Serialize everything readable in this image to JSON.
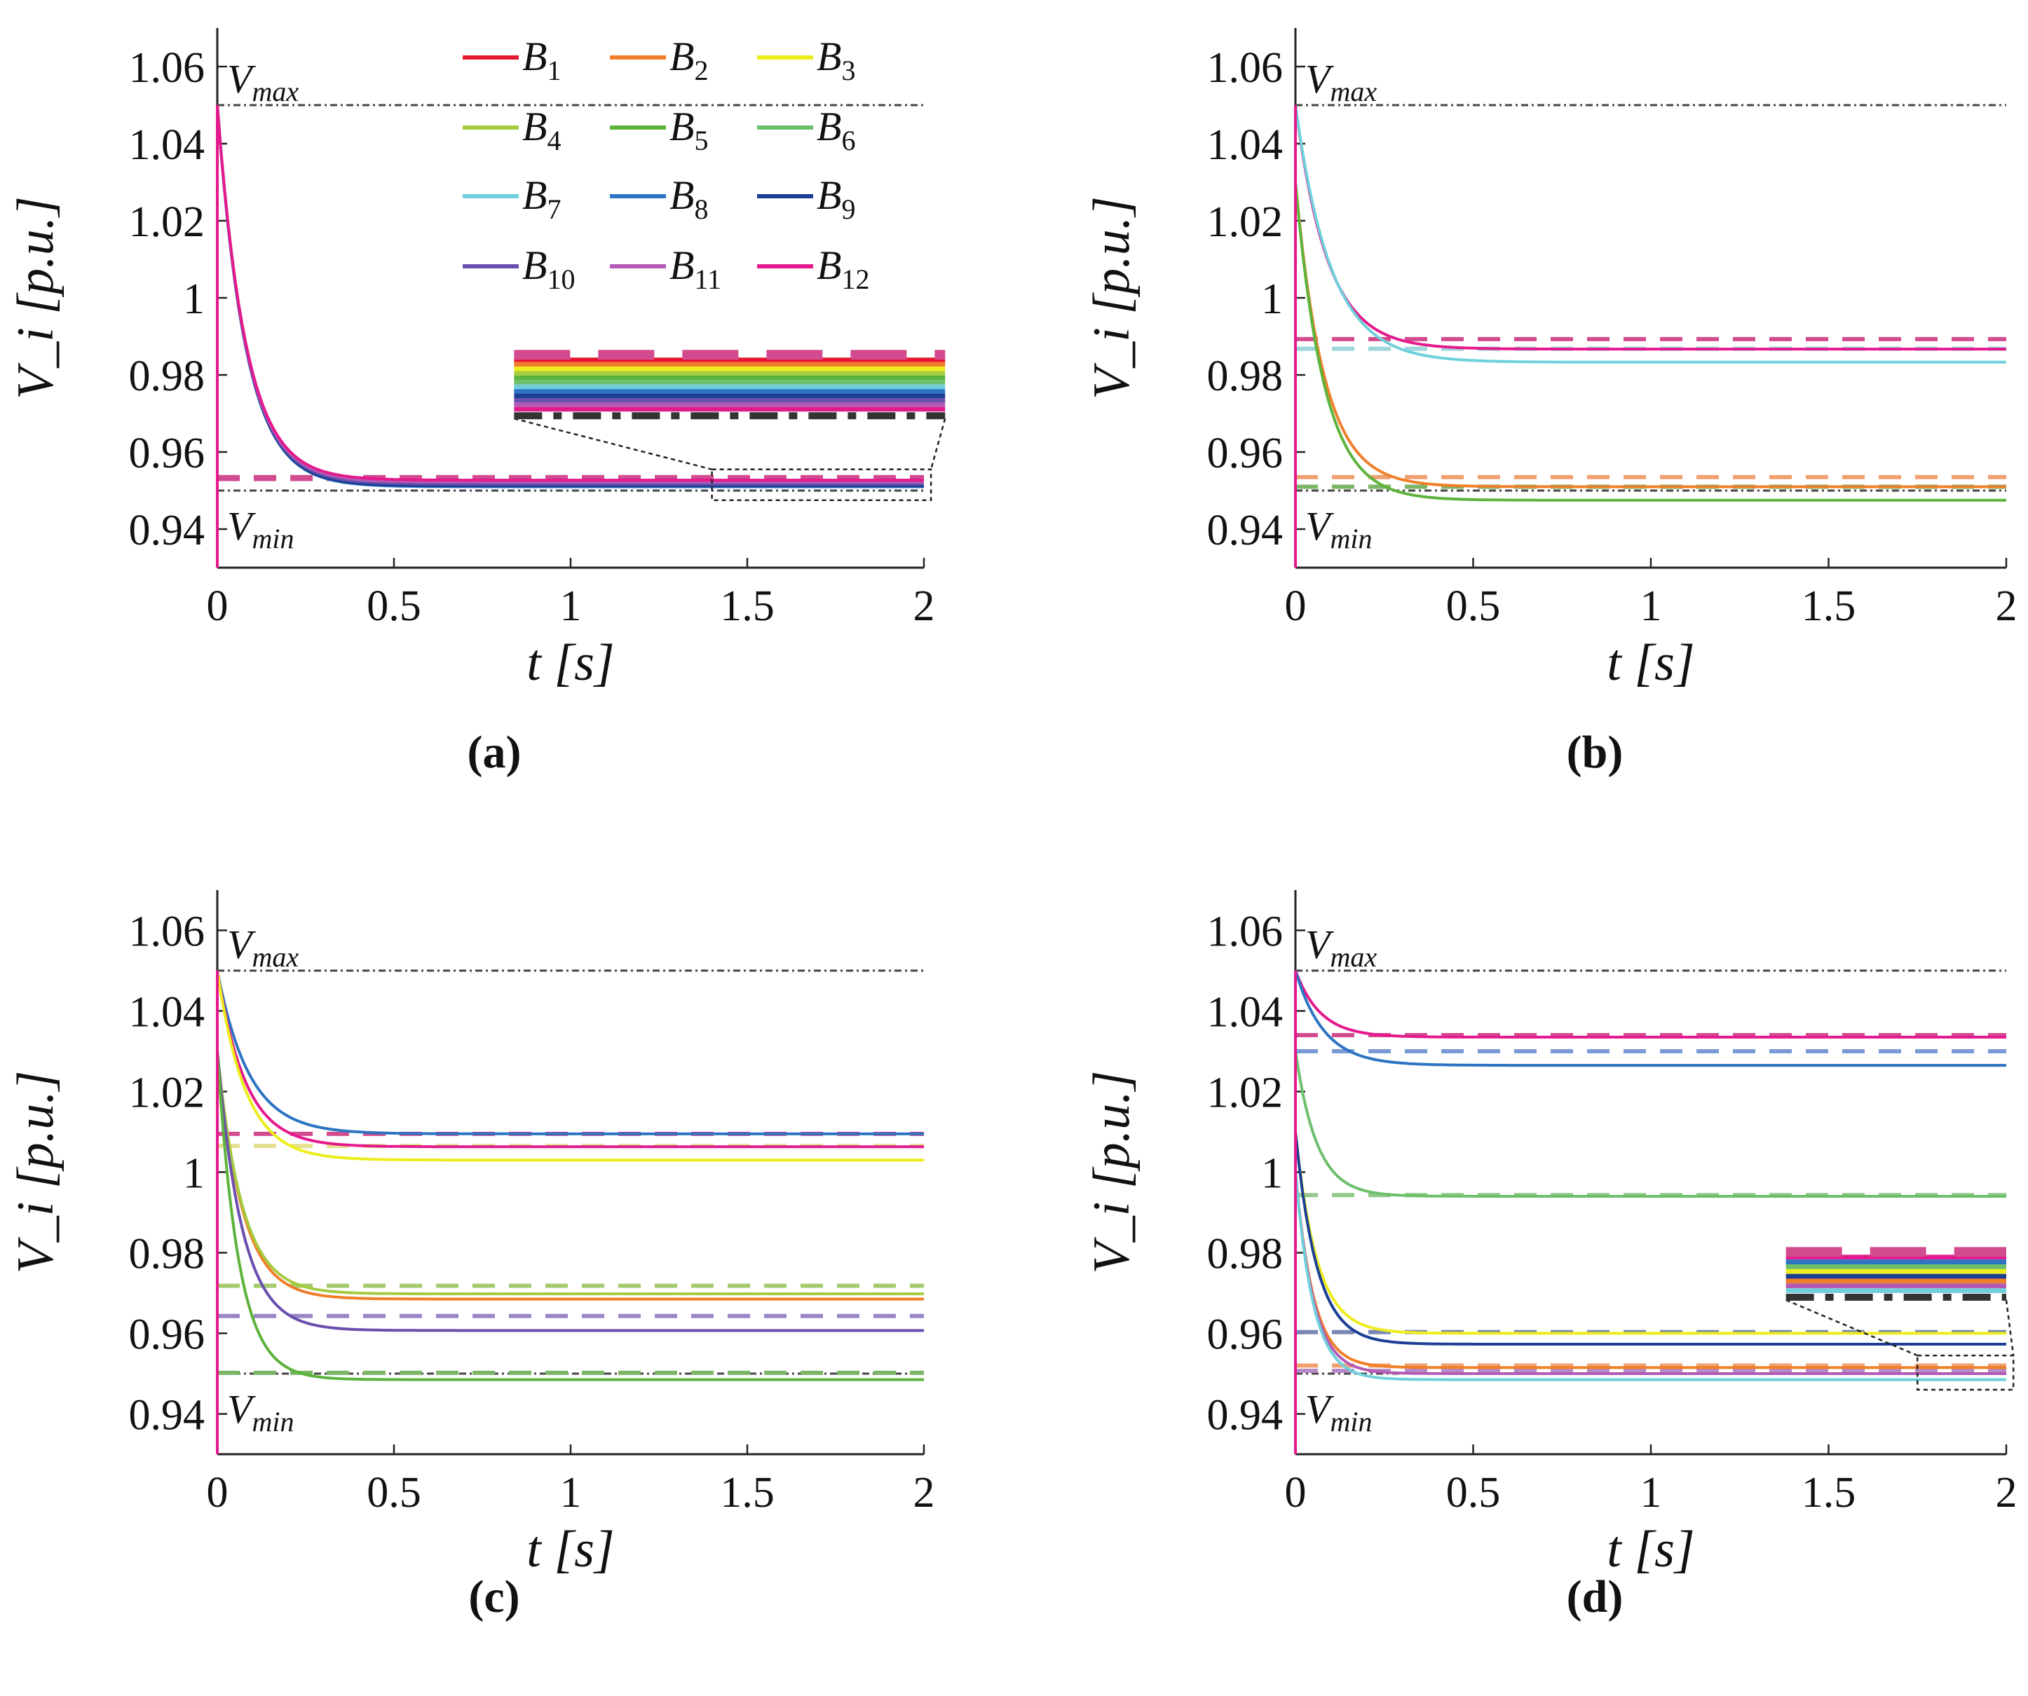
{
  "figure": {
    "legend": [
      {
        "name": "B",
        "sub": "1",
        "color": "#e8152f"
      },
      {
        "name": "B",
        "sub": "2",
        "color": "#f07f2a"
      },
      {
        "name": "B",
        "sub": "3",
        "color": "#eded1c"
      },
      {
        "name": "B",
        "sub": "4",
        "color": "#a5cb3f"
      },
      {
        "name": "B",
        "sub": "5",
        "color": "#5db33c"
      },
      {
        "name": "B",
        "sub": "6",
        "color": "#6cbf6b"
      },
      {
        "name": "B",
        "sub": "7",
        "color": "#6fd0dc"
      },
      {
        "name": "B",
        "sub": "8",
        "color": "#2d74c2"
      },
      {
        "name": "B",
        "sub": "9",
        "color": "#1b3f94"
      },
      {
        "name": "B",
        "sub": "10",
        "color": "#6a4fae"
      },
      {
        "name": "B",
        "sub": "11",
        "color": "#b45ab5"
      },
      {
        "name": "B",
        "sub": "12",
        "color": "#e5198e"
      }
    ],
    "v_max_label": {
      "main": "V",
      "sub": "max"
    },
    "v_min_label": {
      "main": "V",
      "sub": "min"
    },
    "ylabel": "V_i [p.u.]",
    "xlabel": "t [s]"
  },
  "chart_data": [
    {
      "type": "line",
      "caption": "(a)",
      "xlim": [
        0,
        2
      ],
      "ylim": [
        0.93,
        1.07
      ],
      "xticks": [
        "0",
        "0.5",
        "1",
        "1.5",
        "2"
      ],
      "yticks": [
        "0.94",
        "0.96",
        "0.98",
        "1",
        "1.02",
        "1.04",
        "1.06"
      ],
      "ytick_values": [
        0.94,
        0.96,
        0.98,
        1.0,
        1.02,
        1.04,
        1.06
      ],
      "xtick_values": [
        0,
        0.5,
        1,
        1.5,
        2
      ],
      "v_max": 1.05,
      "v_min": 0.95,
      "inset": true,
      "series": [
        {
          "bus": "B1",
          "color": "#e8152f",
          "start": 1.05,
          "final": 0.9525,
          "tau": 0.08
        },
        {
          "bus": "B2",
          "color": "#f07f2a",
          "start": 1.05,
          "final": 0.9522,
          "tau": 0.08
        },
        {
          "bus": "B3",
          "color": "#eded1c",
          "start": 1.05,
          "final": 0.952,
          "tau": 0.08
        },
        {
          "bus": "B4",
          "color": "#a5cb3f",
          "start": 1.05,
          "final": 0.9518,
          "tau": 0.08
        },
        {
          "bus": "B5",
          "color": "#5db33c",
          "start": 1.05,
          "final": 0.9516,
          "tau": 0.08
        },
        {
          "bus": "B6",
          "color": "#6cbf6b",
          "start": 1.05,
          "final": 0.9515,
          "tau": 0.08
        },
        {
          "bus": "B7",
          "color": "#6fd0dc",
          "start": 1.05,
          "final": 0.9512,
          "tau": 0.08
        },
        {
          "bus": "B8",
          "color": "#2d74c2",
          "start": 1.05,
          "final": 0.951,
          "tau": 0.08
        },
        {
          "bus": "B9",
          "color": "#1b3f94",
          "start": 1.05,
          "final": 0.9512,
          "tau": 0.08
        },
        {
          "bus": "B10",
          "color": "#6a4fae",
          "start": 1.05,
          "final": 0.9517,
          "tau": 0.08
        },
        {
          "bus": "B11",
          "color": "#b45ab5",
          "start": 1.05,
          "final": 0.9522,
          "tau": 0.08
        },
        {
          "bus": "B12",
          "color": "#e5198e",
          "start": 1.05,
          "final": 0.9527,
          "tau": 0.08
        }
      ],
      "references": [
        {
          "color": "#d24b8f",
          "value": 0.9535
        },
        {
          "color": "#d24b8f",
          "value": 0.953
        }
      ]
    },
    {
      "type": "line",
      "caption": "(b)",
      "xlim": [
        0,
        2
      ],
      "ylim": [
        0.93,
        1.07
      ],
      "xticks": [
        "0",
        "0.5",
        "1",
        "1.5",
        "2"
      ],
      "yticks": [
        "0.94",
        "0.96",
        "0.98",
        "1",
        "1.02",
        "1.04",
        "1.06"
      ],
      "ytick_values": [
        0.94,
        0.96,
        0.98,
        1.0,
        1.02,
        1.04,
        1.06
      ],
      "xtick_values": [
        0,
        0.5,
        1,
        1.5,
        2
      ],
      "v_max": 1.05,
      "v_min": 0.95,
      "inset": false,
      "series": [
        {
          "bus": "B12",
          "color": "#e5198e",
          "start": 1.05,
          "final": 0.9867,
          "tau": 0.09
        },
        {
          "bus": "B7",
          "color": "#6fd0dc",
          "start": 1.05,
          "final": 0.9833,
          "tau": 0.1
        },
        {
          "bus": "B2",
          "color": "#f07f2a",
          "start": 1.03,
          "final": 0.951,
          "tau": 0.08
        },
        {
          "bus": "B5",
          "color": "#5db33c",
          "start": 1.03,
          "final": 0.9475,
          "tau": 0.08
        }
      ],
      "references": [
        {
          "color": "#d24b8f",
          "value": 0.9893
        },
        {
          "color": "#9ed6dc",
          "value": 0.9868
        },
        {
          "color": "#f0a070",
          "value": 0.9535
        },
        {
          "color": "#7bb565",
          "value": 0.951
        }
      ]
    },
    {
      "type": "line",
      "caption": "(c)",
      "xlim": [
        0,
        2
      ],
      "ylim": [
        0.93,
        1.07
      ],
      "xticks": [
        "0",
        "0.5",
        "1",
        "1.5",
        "2"
      ],
      "yticks": [
        "0.94",
        "0.96",
        "0.98",
        "1",
        "1.02",
        "1.04",
        "1.06"
      ],
      "ytick_values": [
        0.94,
        0.96,
        0.98,
        1.0,
        1.02,
        1.04,
        1.06
      ],
      "xtick_values": [
        0,
        0.5,
        1,
        1.5,
        2
      ],
      "v_max": 1.05,
      "v_min": 0.95,
      "inset": false,
      "series": [
        {
          "bus": "B8",
          "color": "#2d74c2",
          "start": 1.05,
          "final": 1.0095,
          "tau": 0.09
        },
        {
          "bus": "B12",
          "color": "#e5198e",
          "start": 1.05,
          "final": 1.0063,
          "tau": 0.08
        },
        {
          "bus": "B3",
          "color": "#eded1c",
          "start": 1.05,
          "final": 1.003,
          "tau": 0.08
        },
        {
          "bus": "B2",
          "color": "#f07f2a",
          "start": 1.03,
          "final": 0.9685,
          "tau": 0.07
        },
        {
          "bus": "B4",
          "color": "#a5cb3f",
          "start": 1.03,
          "final": 0.9698,
          "tau": 0.07
        },
        {
          "bus": "B10",
          "color": "#6a4fae",
          "start": 1.03,
          "final": 0.9607,
          "tau": 0.07
        },
        {
          "bus": "B5",
          "color": "#5db33c",
          "start": 1.03,
          "final": 0.9485,
          "tau": 0.06
        }
      ],
      "references": [
        {
          "color": "#d24b8f",
          "value": 1.0095
        },
        {
          "color": "#e5e090",
          "value": 1.0065
        },
        {
          "color": "#a5cb6f",
          "value": 0.9718
        },
        {
          "color": "#9a86c6",
          "value": 0.9643
        },
        {
          "color": "#7bb565",
          "value": 0.9502
        }
      ]
    },
    {
      "type": "line",
      "caption": "(d)",
      "xlim": [
        0,
        2
      ],
      "ylim": [
        0.93,
        1.07
      ],
      "xticks": [
        "0",
        "0.5",
        "1",
        "1.5",
        "2"
      ],
      "yticks": [
        "0.94",
        "0.96",
        "0.98",
        "1",
        "1.02",
        "1.04",
        "1.06"
      ],
      "ytick_values": [
        0.94,
        0.96,
        0.98,
        1.0,
        1.02,
        1.04,
        1.06
      ],
      "xtick_values": [
        0,
        0.5,
        1,
        1.5,
        2
      ],
      "v_max": 1.05,
      "v_min": 0.95,
      "inset": true,
      "series": [
        {
          "bus": "B12",
          "color": "#e5198e",
          "start": 1.05,
          "final": 1.0335,
          "tau": 0.07
        },
        {
          "bus": "B8",
          "color": "#2d74c2",
          "start": 1.05,
          "final": 1.0265,
          "tau": 0.08
        },
        {
          "bus": "B6",
          "color": "#6cbf6b",
          "start": 1.03,
          "final": 0.994,
          "tau": 0.06
        },
        {
          "bus": "B3",
          "color": "#eded1c",
          "start": 1.01,
          "final": 0.96,
          "tau": 0.06
        },
        {
          "bus": "B9",
          "color": "#1b3f94",
          "start": 1.01,
          "final": 0.9573,
          "tau": 0.06
        },
        {
          "bus": "B2",
          "color": "#f07f2a",
          "start": 1.0,
          "final": 0.9515,
          "tau": 0.05
        },
        {
          "bus": "B11",
          "color": "#b45ab5",
          "start": 1.0,
          "final": 0.95,
          "tau": 0.05
        },
        {
          "bus": "B7",
          "color": "#6fd0dc",
          "start": 1.0,
          "final": 0.9485,
          "tau": 0.05
        }
      ],
      "references": [
        {
          "color": "#d24b8f",
          "value": 1.034
        },
        {
          "color": "#7a9ad6",
          "value": 1.03
        },
        {
          "color": "#93c98a",
          "value": 0.9943
        },
        {
          "color": "#7a86b6",
          "value": 0.9603
        },
        {
          "color": "#f0a070",
          "value": 0.952
        },
        {
          "color": "#b58ac6",
          "value": 0.9507
        }
      ]
    }
  ]
}
